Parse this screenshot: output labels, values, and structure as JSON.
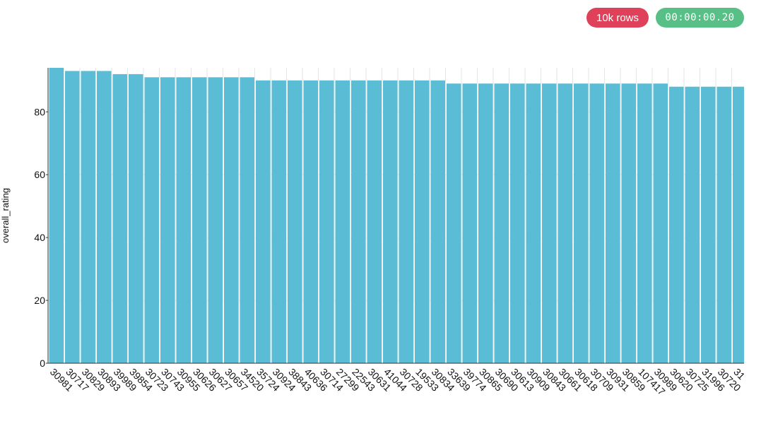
{
  "badges": {
    "rows": "10k rows",
    "time": "00:00:00.20",
    "rows_color": "#e0415a",
    "time_color": "#58c087"
  },
  "colors": {
    "bar": "#5bbcd6",
    "grid": "#e6e6e6",
    "axis": "#333333"
  },
  "chart_data": {
    "type": "bar",
    "ylabel": "overall_rating",
    "xlabel": "",
    "ylim": [
      0,
      94
    ],
    "yticks": [
      0,
      20,
      40,
      60,
      80
    ],
    "grid": true,
    "categories": [
      "30981",
      "30717",
      "30829",
      "30893",
      "39989",
      "39854",
      "30723",
      "30743",
      "30955",
      "30626",
      "30627",
      "30657",
      "34520",
      "35724",
      "30924",
      "38843",
      "40636",
      "30714",
      "27299",
      "22543",
      "30631",
      "41044",
      "30728",
      "19533",
      "30834",
      "33639",
      "39774",
      "30865",
      "30690",
      "30613",
      "30909",
      "30843",
      "30661",
      "30618",
      "30709",
      "30931",
      "30859",
      "107417",
      "30989",
      "30620",
      "30725",
      "31996",
      "30720",
      "31"
    ],
    "values": [
      94,
      93,
      93,
      93,
      92,
      92,
      91,
      91,
      91,
      91,
      91,
      91,
      91,
      90,
      90,
      90,
      90,
      90,
      90,
      90,
      90,
      90,
      90,
      90,
      90,
      89,
      89,
      89,
      89,
      89,
      89,
      89,
      89,
      89,
      89,
      89,
      89,
      89,
      89,
      88,
      88,
      88,
      88,
      88
    ]
  }
}
